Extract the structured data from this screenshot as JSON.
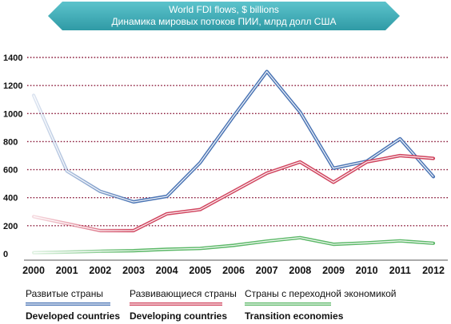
{
  "chart_data": {
    "type": "line",
    "title": "World FDI flows, $ billions",
    "subtitle": "Динамика мировых потоков ПИИ, млрд долл США",
    "x": [
      "2000",
      "2001",
      "2002",
      "2003",
      "2004",
      "2005",
      "2006",
      "2007",
      "2008",
      "2009",
      "2010",
      "2011",
      "2012"
    ],
    "ylim": [
      0,
      1400
    ],
    "yticks": [
      0,
      200,
      400,
      600,
      800,
      1000,
      1200,
      1400
    ],
    "grid": true,
    "legend_position": "bottom",
    "series": [
      {
        "name": "Developed countries",
        "name_ru": "Развитые страны",
        "color": "#4a74b4",
        "values": [
          1130,
          590,
          445,
          370,
          410,
          650,
          980,
          1300,
          1010,
          610,
          660,
          820,
          550
        ]
      },
      {
        "name": "Developing countries",
        "name_ru": "Развивающиеся страны",
        "color": "#d0445e",
        "values": [
          265,
          215,
          165,
          165,
          285,
          315,
          445,
          575,
          655,
          510,
          655,
          700,
          680
        ]
      },
      {
        "name": "Transition economies",
        "name_ru": "Страны с переходной экономикой",
        "color": "#5cb868",
        "values": [
          8,
          12,
          18,
          22,
          32,
          38,
          60,
          90,
          115,
          68,
          78,
          92,
          75
        ]
      }
    ]
  }
}
